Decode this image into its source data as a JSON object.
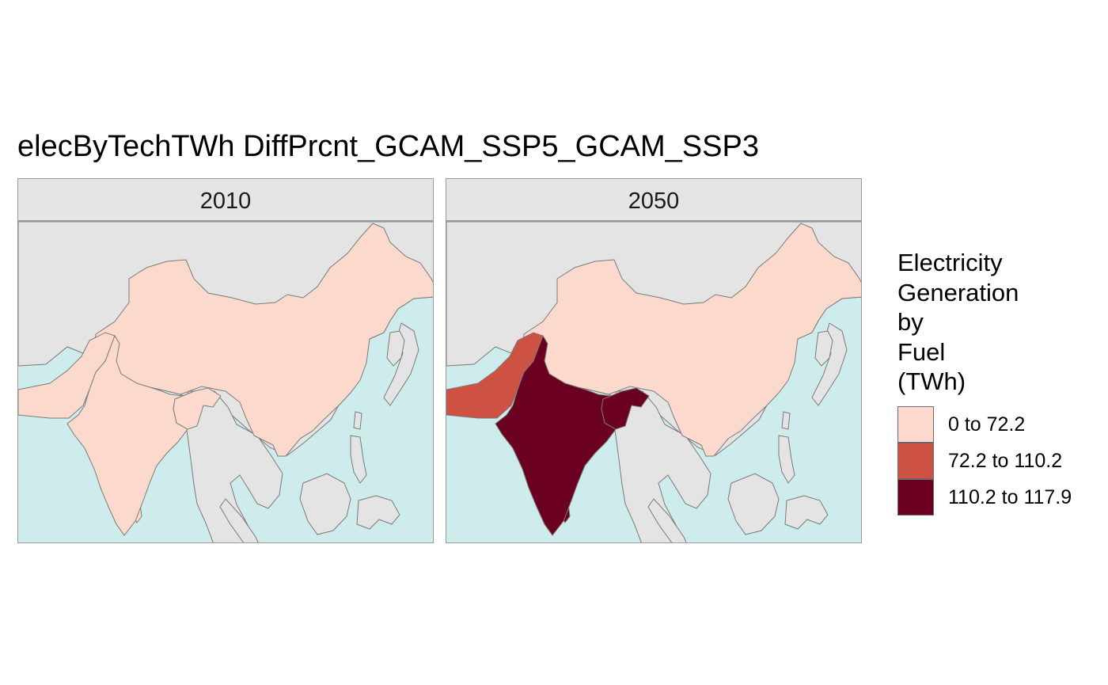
{
  "title": "elecByTechTWh DiffPrcnt_GCAM_SSP5_GCAM_SSP3",
  "panels": [
    {
      "label": "2010",
      "india_class": 0,
      "pakistan_class": 0,
      "china_class": 0
    },
    {
      "label": "2050",
      "india_class": 2,
      "pakistan_class": 1,
      "china_class": 0
    }
  ],
  "colors": {
    "ocean": "#cfeced",
    "land_no_data": "#e4e4e4",
    "border": "#7a7a7a"
  },
  "legend": {
    "title_lines": [
      "Electricity",
      "Generation",
      "by",
      "Fuel",
      "(TWh)"
    ],
    "items": [
      {
        "label": "0 to 72.2",
        "color": "#fbdacd"
      },
      {
        "label": "72.2 to 110.2",
        "color": "#cd5243"
      },
      {
        "label": "110.2 to 117.9",
        "color": "#6b0020"
      }
    ]
  }
}
